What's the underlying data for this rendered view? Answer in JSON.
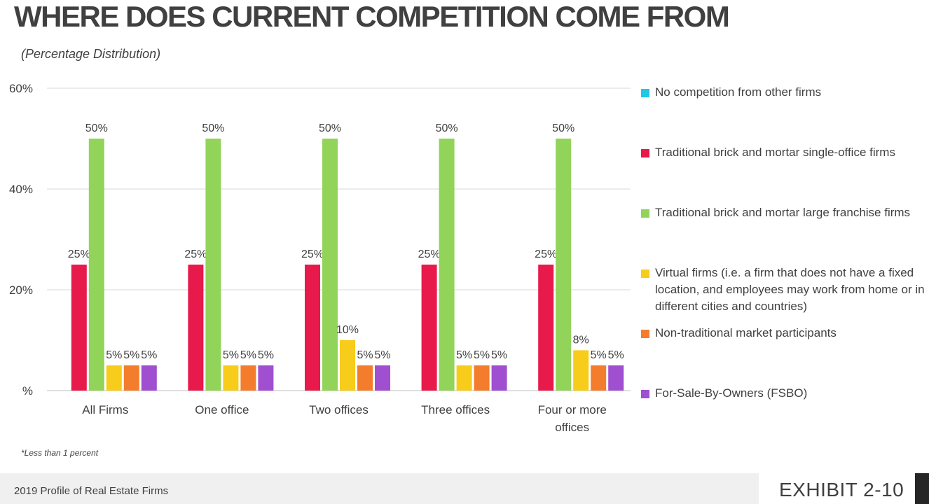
{
  "header": {
    "title": "WHERE DOES CURRENT COMPETITION COME FROM",
    "subtitle": "(Percentage Distribution)"
  },
  "footnote": "*Less than 1 percent",
  "footer": {
    "source": "2019 Profile of Real Estate Firms",
    "exhibit": "EXHIBIT 2-10"
  },
  "chart_data": {
    "type": "bar",
    "categories": [
      [
        "All Firms"
      ],
      [
        "One office"
      ],
      [
        "Two offices"
      ],
      [
        "Three offices"
      ],
      [
        "Four or more",
        "offices"
      ]
    ],
    "y_ticks": [
      "%",
      "20%",
      "40%",
      "60%"
    ],
    "ylim": [
      0,
      60
    ],
    "grid": true,
    "legend_position": "right",
    "series": [
      {
        "name": "No competition from other firms",
        "color": "#1ec8e6",
        "values": [
          0,
          0,
          0,
          0,
          0
        ],
        "labels": [
          "",
          "",
          "",
          "",
          ""
        ]
      },
      {
        "name": "Traditional brick and mortar single-office firms",
        "color": "#e8194b",
        "values": [
          25,
          25,
          25,
          25,
          25
        ],
        "labels": [
          "25%",
          "25%",
          "25%",
          "25%",
          "25%"
        ]
      },
      {
        "name": "Traditional brick and mortar large franchise firms",
        "color": "#92d35a",
        "values": [
          50,
          50,
          50,
          50,
          50
        ],
        "labels": [
          "50%",
          "50%",
          "50%",
          "50%",
          "50%"
        ]
      },
      {
        "name": "Virtual firms (i.e. a firm that does not have a fixed location, and employees may work from home or in different cities and countries)",
        "color": "#f7cc1b",
        "values": [
          5,
          5,
          10,
          5,
          8
        ],
        "labels": [
          "5%",
          "5%",
          "10%",
          "5%",
          "8%"
        ]
      },
      {
        "name": "Non-traditional market participants",
        "color": "#f47c2d",
        "values": [
          5,
          5,
          5,
          5,
          5
        ],
        "labels": [
          "5%",
          "5%",
          "5%",
          "5%",
          "5%"
        ]
      },
      {
        "name": "For-Sale-By-Owners (FSBO)",
        "color": "#a04fd0",
        "values": [
          5,
          5,
          5,
          5,
          5
        ],
        "labels": [
          "5%",
          "5%",
          "5%",
          "5%",
          "5%"
        ]
      }
    ]
  }
}
